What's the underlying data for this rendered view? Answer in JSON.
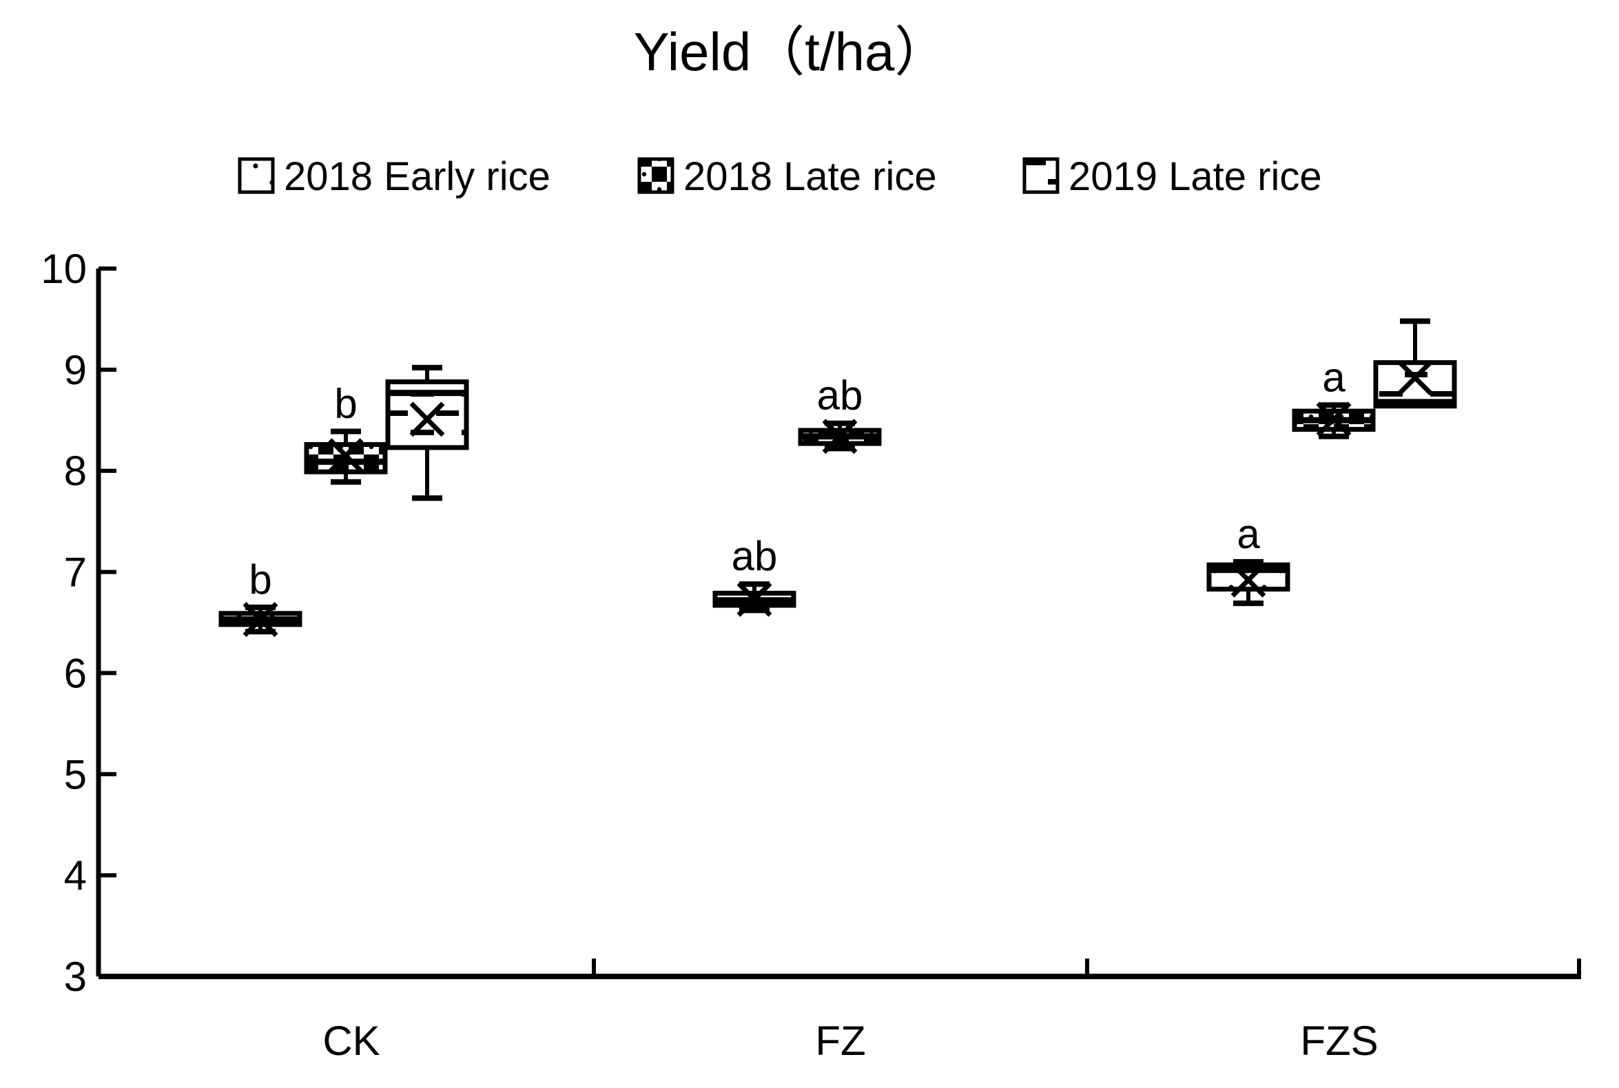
{
  "title": "Yield（t/ha）",
  "legend": {
    "items": [
      {
        "label": "2018 Early rice",
        "pattern": "dots"
      },
      {
        "label": "2018 Late rice",
        "pattern": "checker"
      },
      {
        "label": "2019 Late rice",
        "pattern": "dashes"
      }
    ]
  },
  "colors": {
    "ink": "#000000",
    "background": "#ffffff"
  },
  "chart_data": {
    "type": "boxplot",
    "title": "Yield（t/ha）",
    "xlabel": "",
    "ylabel": "",
    "ylim": [
      3,
      10
    ],
    "yticks": [
      3,
      4,
      5,
      6,
      7,
      8,
      9,
      10
    ],
    "grid": false,
    "legend_position": "top-center",
    "categories": [
      "CK",
      "FZ",
      "FZS"
    ],
    "series": [
      {
        "name": "2018 Early rice",
        "pattern": "dots",
        "boxes": [
          {
            "category": "CK",
            "min": 6.41,
            "q1": 6.48,
            "median": 6.53,
            "q3": 6.59,
            "max": 6.65,
            "mean": 6.53,
            "letter": "b"
          },
          {
            "category": "FZ",
            "min": 6.62,
            "q1": 6.67,
            "median": 6.72,
            "q3": 6.79,
            "max": 6.88,
            "mean": 6.73,
            "letter": "ab"
          },
          {
            "category": "FZS",
            "min": 6.69,
            "q1": 6.83,
            "median": 7.02,
            "q3": 7.07,
            "max": 7.1,
            "mean": 6.92,
            "letter": "a"
          }
        ]
      },
      {
        "name": "2018 Late rice",
        "pattern": "checker",
        "boxes": [
          {
            "category": "CK",
            "min": 7.89,
            "q1": 7.99,
            "median": 8.09,
            "q3": 8.26,
            "max": 8.39,
            "mean": 8.15,
            "letter": "b"
          },
          {
            "category": "FZ",
            "min": 8.22,
            "q1": 8.27,
            "median": 8.34,
            "q3": 8.4,
            "max": 8.47,
            "mean": 8.34,
            "letter": "ab"
          },
          {
            "category": "FZS",
            "min": 8.34,
            "q1": 8.41,
            "median": 8.5,
            "q3": 8.59,
            "max": 8.65,
            "mean": 8.51,
            "letter": "a"
          }
        ]
      },
      {
        "name": "2019 Late rice",
        "pattern": "dashes",
        "boxes": [
          {
            "category": "CK",
            "min": 7.73,
            "q1": 8.23,
            "median": 8.77,
            "q3": 8.88,
            "max": 9.02,
            "mean": 8.51,
            "letter": null
          },
          null,
          {
            "category": "FZS",
            "min": 8.64,
            "q1": 8.64,
            "median": 8.68,
            "q3": 9.07,
            "max": 9.48,
            "mean": 8.92,
            "letter": null
          }
        ]
      }
    ]
  }
}
